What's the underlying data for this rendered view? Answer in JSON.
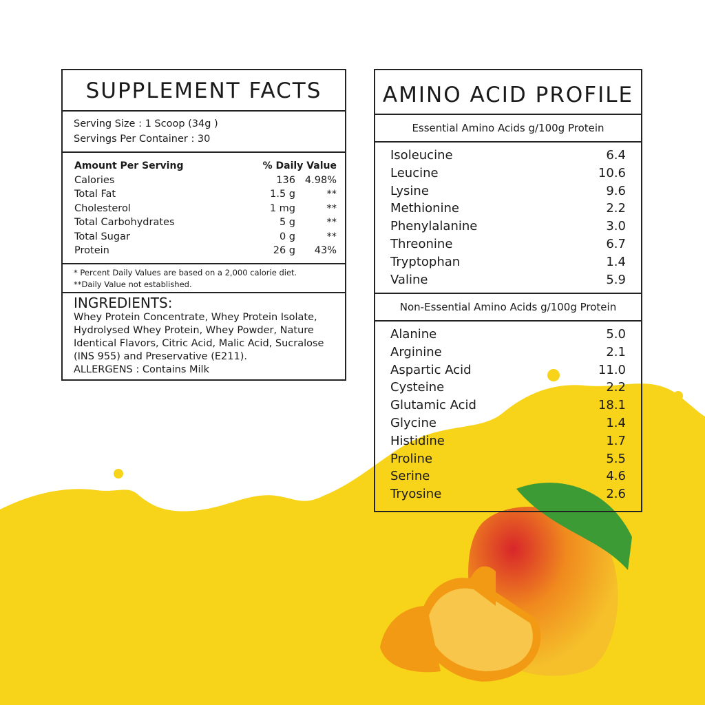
{
  "colors": {
    "accent_yellow": "#F7D31A",
    "border": "#222222"
  },
  "supplement_facts": {
    "title": "SUPPLEMENT FACTS",
    "serving_size": "Serving Size : 1 Scoop (34g )",
    "servings_per_container": "Servings Per Container : 30",
    "header": {
      "name": "Amount Per Serving",
      "daily": "% Daily Value"
    },
    "nutrients": [
      {
        "name": "Calories",
        "amount": "136",
        "daily": "4.98%"
      },
      {
        "name": "Total Fat",
        "amount": "1.5 g",
        "daily": "**"
      },
      {
        "name": "Cholesterol",
        "amount": "1 mg",
        "daily": "**"
      },
      {
        "name": "Total Carbohydrates",
        "amount": "5 g",
        "daily": "**"
      },
      {
        "name": "Total Sugar",
        "amount": "0 g",
        "daily": "**"
      },
      {
        "name": "Protein",
        "amount": "26 g",
        "daily": "43%"
      }
    ],
    "footnote1": "* Percent Daily Values are based on a 2,000 calorie diet.",
    "footnote2": "**Daily Value not established.",
    "ingredients_title": "INGREDIENTS:",
    "ingredients": "Whey Protein Concentrate, Whey Protein Isolate, Hydrolysed Whey Protein, Whey Powder, Nature Identical Flavors, Citric Acid, Malic Acid, Sucralose (INS 955) and  Preservative (E211).",
    "allergens": "ALLERGENS : Contains Milk"
  },
  "amino_profile": {
    "title": "AMINO ACID PROFILE",
    "essential_title": "Essential Amino Acids g/100g Protein",
    "essential": [
      {
        "name": "Isoleucine",
        "value": "6.4"
      },
      {
        "name": "Leucine",
        "value": "10.6"
      },
      {
        "name": "Lysine",
        "value": "9.6"
      },
      {
        "name": "Methionine",
        "value": "2.2"
      },
      {
        "name": "Phenylalanine",
        "value": "3.0"
      },
      {
        "name": "Threonine",
        "value": "6.7"
      },
      {
        "name": "Tryptophan",
        "value": "1.4"
      },
      {
        "name": "Valine",
        "value": "5.9"
      }
    ],
    "non_essential_title": "Non-Essential Amino Acids g/100g Protein",
    "non_essential": [
      {
        "name": "Alanine",
        "value": "5.0"
      },
      {
        "name": "Arginine",
        "value": "2.1"
      },
      {
        "name": "Aspartic Acid",
        "value": "11.0"
      },
      {
        "name": "Cysteine",
        "value": "2.2"
      },
      {
        "name": "Glutamic Acid",
        "value": "18.1"
      },
      {
        "name": "Glycine",
        "value": "1.4"
      },
      {
        "name": "Histidine",
        "value": "1.7"
      },
      {
        "name": "Proline",
        "value": "5.5"
      },
      {
        "name": "Serine",
        "value": "4.6"
      },
      {
        "name": "Tryosine",
        "value": "2.6"
      }
    ]
  }
}
